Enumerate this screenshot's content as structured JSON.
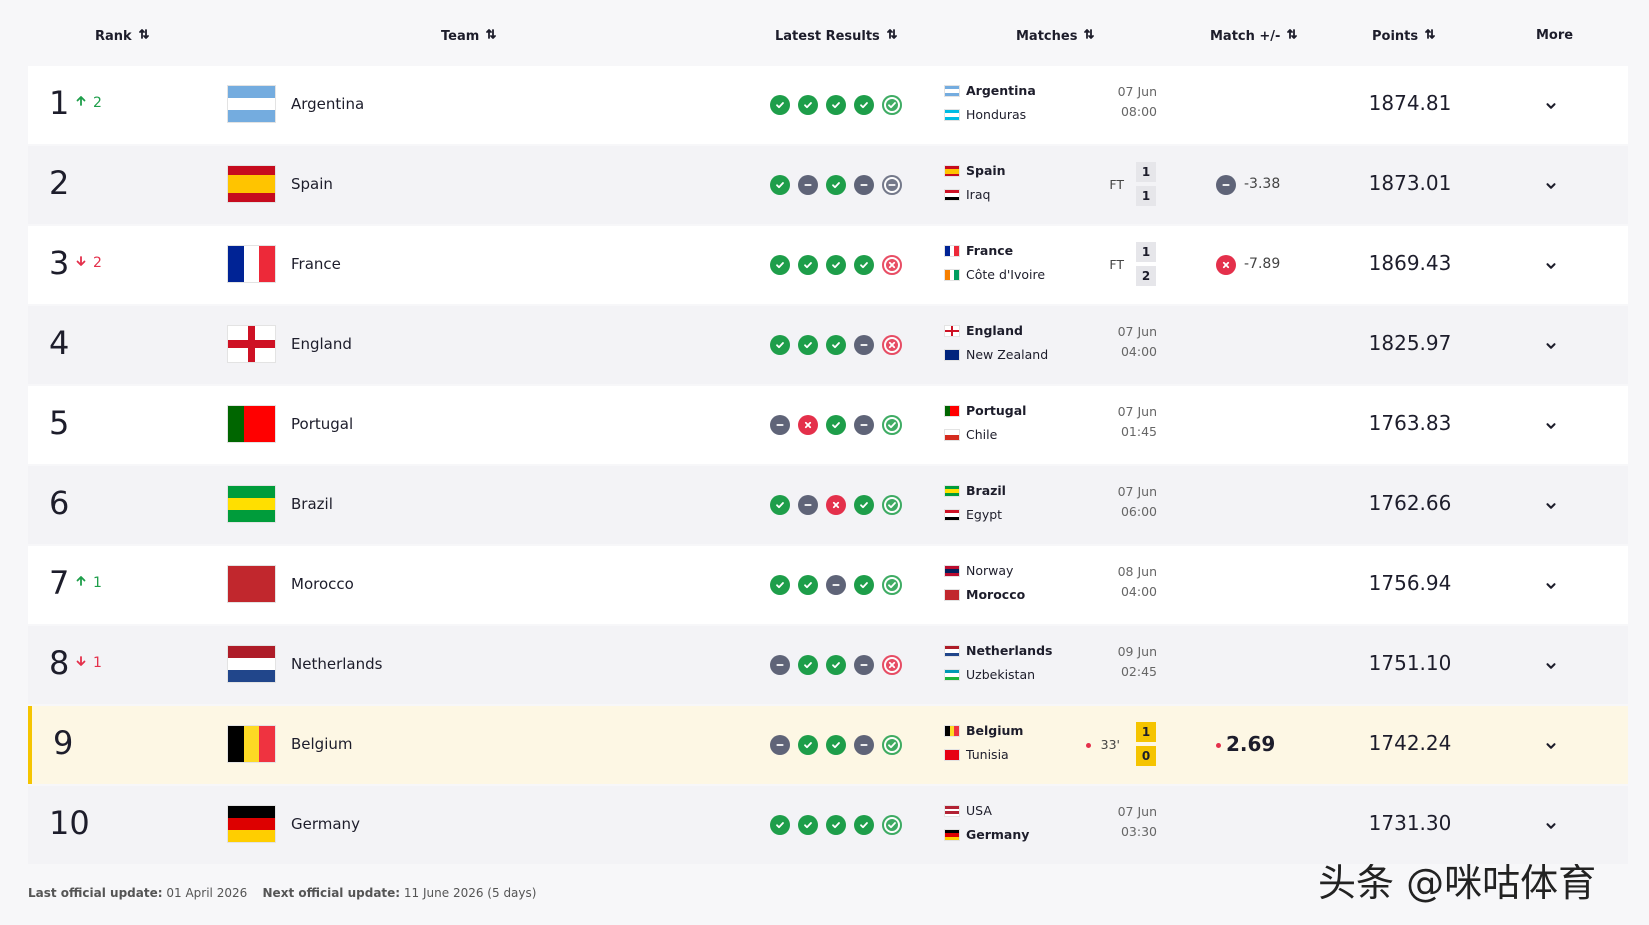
{
  "header": {
    "rank": "Rank",
    "team": "Team",
    "latest_results": "Latest Results",
    "matches": "Matches",
    "match_delta": "Match +/-",
    "points": "Points",
    "more": "More"
  },
  "flags": {
    "Argentina": [
      "h",
      "#74acdf",
      "#ffffff",
      "#74acdf"
    ],
    "Honduras": [
      "h",
      "#00bce4",
      "#ffffff",
      "#00bce4"
    ],
    "Spain": [
      "h",
      "#c60b1e",
      "#ffc400",
      "#ffc400",
      "#c60b1e"
    ],
    "Iraq": [
      "h",
      "#ce1126",
      "#ffffff",
      "#000000"
    ],
    "France": [
      "v",
      "#002395",
      "#ffffff",
      "#ed2939"
    ],
    "Côte d'Ivoire": [
      "v",
      "#f77f00",
      "#ffffff",
      "#009e60"
    ],
    "England": [
      "x",
      "#ffffff",
      "#ce1124"
    ],
    "New Zealand": [
      "h",
      "#00247d"
    ],
    "Portugal": [
      "v",
      "#006600",
      "#ff0000",
      "#ff0000"
    ],
    "Chile": [
      "h",
      "#ffffff",
      "#d52b1e"
    ],
    "Brazil": [
      "h",
      "#009c3b",
      "#ffdf00",
      "#009c3b"
    ],
    "Egypt": [
      "h",
      "#ce1126",
      "#ffffff",
      "#000000"
    ],
    "Norway": [
      "h",
      "#ba0c2f",
      "#00205b",
      "#ba0c2f"
    ],
    "Morocco": [
      "h",
      "#c1272d"
    ],
    "Netherlands": [
      "h",
      "#ae1c28",
      "#ffffff",
      "#21468b"
    ],
    "Uzbekistan": [
      "h",
      "#0099b5",
      "#ffffff",
      "#1eb53a"
    ],
    "Belgium": [
      "v",
      "#000000",
      "#fdda24",
      "#ef3340"
    ],
    "Tunisia": [
      "h",
      "#e70013"
    ],
    "USA": [
      "h",
      "#b22234",
      "#ffffff",
      "#b22234",
      "#ffffff"
    ],
    "Germany": [
      "h",
      "#000000",
      "#dd0000",
      "#ffce00"
    ]
  },
  "rows": [
    {
      "rank": 1,
      "move": "up",
      "move_by": 2,
      "team": "Argentina",
      "results": [
        "W",
        "W",
        "W",
        "W",
        "W"
      ],
      "match": {
        "home": "Argentina",
        "away": "Honduras",
        "date": "07 Jun",
        "time": "08:00"
      },
      "points": "1874.81"
    },
    {
      "rank": 2,
      "team": "Spain",
      "results": [
        "W",
        "D",
        "W",
        "D",
        "D"
      ],
      "match": {
        "home": "Spain",
        "away": "Iraq",
        "status": "FT",
        "home_score": 1,
        "away_score": 1
      },
      "delta": {
        "icon": "D",
        "value": "-3.38"
      },
      "points": "1873.01"
    },
    {
      "rank": 3,
      "move": "down",
      "move_by": 2,
      "team": "France",
      "results": [
        "W",
        "W",
        "W",
        "W",
        "L"
      ],
      "match": {
        "home": "France",
        "away": "Côte d'Ivoire",
        "status": "FT",
        "home_score": 1,
        "away_score": 2
      },
      "delta": {
        "icon": "L",
        "value": "-7.89"
      },
      "points": "1869.43"
    },
    {
      "rank": 4,
      "team": "England",
      "results": [
        "W",
        "W",
        "W",
        "D",
        "L"
      ],
      "match": {
        "home": "England",
        "away": "New Zealand",
        "date": "07 Jun",
        "time": "04:00"
      },
      "points": "1825.97"
    },
    {
      "rank": 5,
      "team": "Portugal",
      "results": [
        "D",
        "L",
        "W",
        "D",
        "W"
      ],
      "match": {
        "home": "Portugal",
        "away": "Chile",
        "date": "07 Jun",
        "time": "01:45"
      },
      "points": "1763.83"
    },
    {
      "rank": 6,
      "team": "Brazil",
      "results": [
        "W",
        "D",
        "L",
        "W",
        "W"
      ],
      "match": {
        "home": "Brazil",
        "away": "Egypt",
        "date": "07 Jun",
        "time": "06:00"
      },
      "points": "1762.66"
    },
    {
      "rank": 7,
      "move": "up",
      "move_by": 1,
      "team": "Morocco",
      "results": [
        "W",
        "W",
        "D",
        "W",
        "W"
      ],
      "match": {
        "home": "Norway",
        "away": "Morocco",
        "date": "08 Jun",
        "time": "04:00"
      },
      "points": "1756.94"
    },
    {
      "rank": 8,
      "move": "down",
      "move_by": 1,
      "team": "Netherlands",
      "results": [
        "D",
        "W",
        "W",
        "D",
        "L"
      ],
      "match": {
        "home": "Netherlands",
        "away": "Uzbekistan",
        "date": "09 Jun",
        "time": "02:45"
      },
      "points": "1751.10"
    },
    {
      "rank": 9,
      "team": "Belgium",
      "highlight": true,
      "results": [
        "D",
        "W",
        "W",
        "D",
        "W"
      ],
      "match": {
        "home": "Belgium",
        "away": "Tunisia",
        "status": "33'",
        "live": true,
        "home_score": 1,
        "away_score": 0
      },
      "delta": {
        "icon": "live",
        "value": "2.69"
      },
      "points": "1742.24"
    },
    {
      "rank": 10,
      "team": "Germany",
      "results": [
        "W",
        "W",
        "W",
        "W",
        "W"
      ],
      "match": {
        "home": "USA",
        "away": "Germany",
        "date": "07 Jun",
        "time": "03:30"
      },
      "points": "1731.30"
    }
  ],
  "footer": {
    "last_label": "Last official update:",
    "last_date": "01 April 2026",
    "next_label": "Next official update:",
    "next_date": "11 June 2026 (5 days)"
  },
  "watermark": "头条 @咪咕体育"
}
